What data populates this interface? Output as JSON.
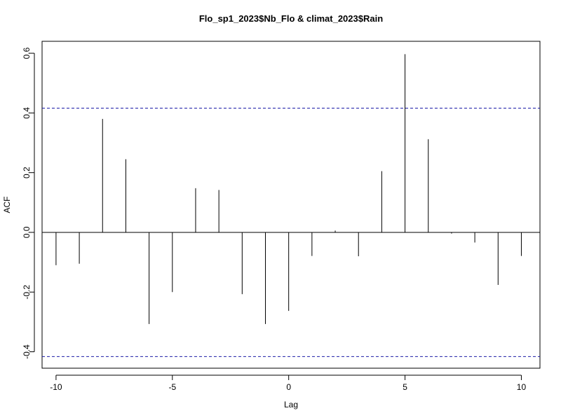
{
  "chart_data": {
    "type": "bar",
    "title": "Flo_sp1_2023$Nb_Flo & climat_2023$Rain",
    "xlabel": "Lag",
    "ylabel": "ACF",
    "xlim": [
      -10.6,
      10.8
    ],
    "ylim": [
      -0.455,
      0.64
    ],
    "x_ticks": [
      -10,
      -5,
      0,
      5,
      10
    ],
    "y_ticks": [
      -0.4,
      -0.2,
      0.0,
      0.2,
      0.4,
      0.6
    ],
    "x": [
      -10,
      -9,
      -8,
      -7,
      -6,
      -5,
      -4,
      -3,
      -2,
      -1,
      0,
      1,
      2,
      3,
      4,
      5,
      6,
      7,
      8,
      9,
      10
    ],
    "values": [
      -0.11,
      -0.105,
      0.38,
      0.245,
      -0.307,
      -0.2,
      0.148,
      0.142,
      -0.207,
      -0.307,
      -0.263,
      -0.079,
      0.006,
      -0.08,
      0.205,
      0.597,
      0.312,
      -0.004,
      -0.034,
      -0.176,
      -0.079
    ],
    "confidence_bounds": [
      0.416,
      -0.416
    ],
    "colors": {
      "bars": "#000000",
      "bounds": "#1a1aa6",
      "axis": "#000000"
    },
    "grid": false
  }
}
